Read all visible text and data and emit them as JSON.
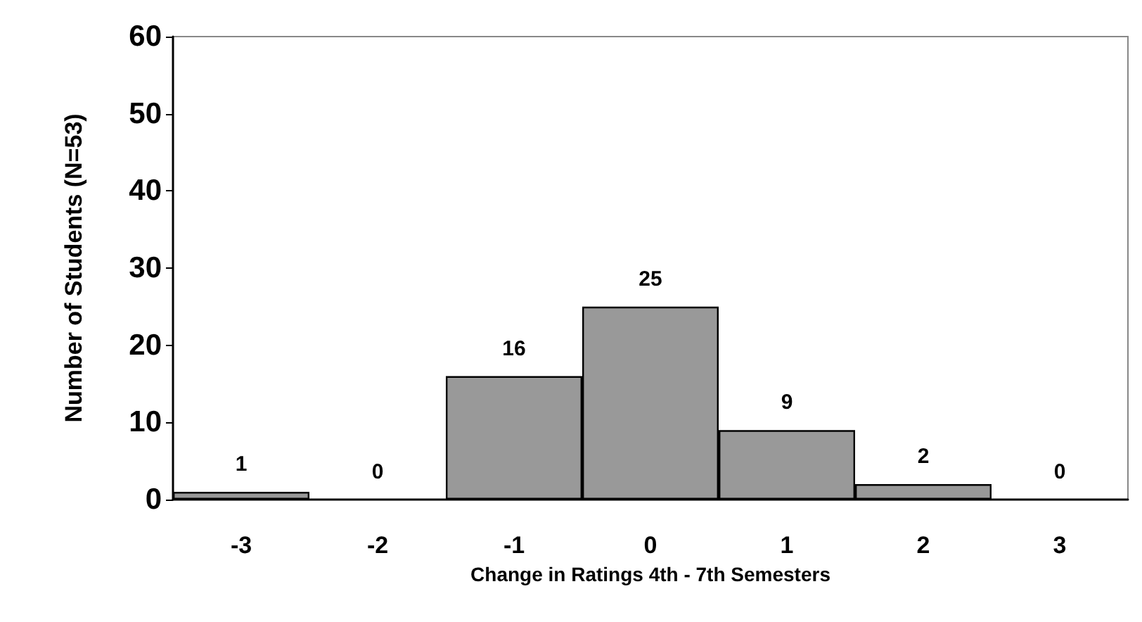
{
  "chart_data": {
    "type": "bar",
    "xlabel": "Change in Ratings 4th - 7th Semesters",
    "ylabel": "Number of Students (N=53)",
    "categories": [
      "-3",
      "-2",
      "-1",
      "0",
      "1",
      "2",
      "3"
    ],
    "values": [
      1,
      0,
      16,
      25,
      9,
      2,
      0
    ],
    "color": "#999999",
    "ylim": [
      0,
      60
    ],
    "yticks": [
      0,
      10,
      20,
      30,
      40,
      50,
      60
    ],
    "data_labels": true
  }
}
